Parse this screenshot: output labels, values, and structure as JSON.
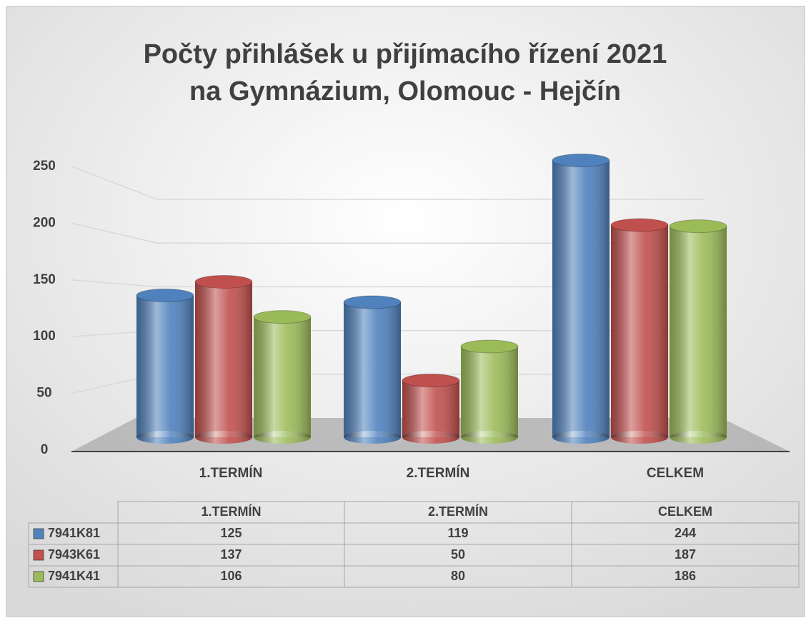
{
  "chart_data": {
    "type": "bar",
    "title": [
      "Počty přihlášek u přijímacího řízení 2021",
      "na Gymnázium, Olomouc - Hejčín"
    ],
    "categories": [
      "1.TERMÍN",
      "2.TERMÍN",
      "CELKEM"
    ],
    "series": [
      {
        "name": "7941K81",
        "color": "#4f81bd",
        "values": [
          125,
          119,
          244
        ]
      },
      {
        "name": "7943K61",
        "color": "#c0504d",
        "values": [
          137,
          50,
          187
        ]
      },
      {
        "name": "7941K41",
        "color": "#9bbb59",
        "values": [
          106,
          80,
          186
        ]
      }
    ],
    "ylim": [
      0,
      250
    ],
    "yticks": [
      0,
      50,
      100,
      150,
      200,
      250
    ],
    "grid": true
  }
}
